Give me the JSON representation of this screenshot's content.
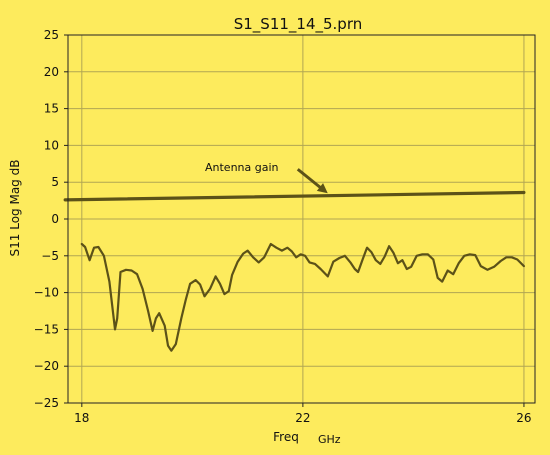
{
  "colors": {
    "background": "#fdeb5d",
    "line": "#5c5218",
    "grid": "#b1a653",
    "text": "#111111"
  },
  "chart_data": {
    "type": "line",
    "title": "S1_S11_14_5.prn",
    "xlabel": "Freq",
    "xunit": "GHz",
    "ylabel": "S11 Log Mag dB",
    "xlim": [
      17.75,
      26.2
    ],
    "ylim": [
      -25,
      25
    ],
    "xticks": [
      18,
      22,
      26
    ],
    "yticks": [
      25,
      20,
      15,
      10,
      5,
      0,
      -5,
      -10,
      -15,
      -20,
      -25
    ],
    "grid": true,
    "annotation": {
      "text": "Antenna gain",
      "points_to": [
        22.45,
        3.5
      ]
    },
    "series": [
      {
        "role": "reference",
        "x": [
          17.7,
          26.0
        ],
        "y": [
          2.6,
          3.6
        ]
      },
      {
        "role": "s11",
        "x": [
          18.0,
          18.06,
          18.14,
          18.22,
          18.3,
          18.4,
          18.5,
          18.6,
          18.64,
          18.7,
          18.8,
          18.9,
          19.0,
          19.1,
          19.2,
          19.28,
          19.34,
          19.4,
          19.5,
          19.56,
          19.62,
          19.7,
          19.8,
          19.88,
          19.96,
          20.06,
          20.14,
          20.22,
          20.32,
          20.42,
          20.5,
          20.58,
          20.66,
          20.72,
          20.82,
          20.92,
          21.0,
          21.1,
          21.2,
          21.3,
          21.42,
          21.52,
          21.62,
          21.72,
          21.8,
          21.88,
          21.96,
          22.04,
          22.12,
          22.22,
          22.32,
          22.45,
          22.55,
          22.66,
          22.76,
          22.86,
          22.94,
          23.0,
          23.08,
          23.16,
          23.24,
          23.32,
          23.4,
          23.48,
          23.56,
          23.64,
          23.72,
          23.8,
          23.88,
          23.96,
          24.06,
          24.16,
          24.26,
          24.36,
          24.44,
          24.52,
          24.62,
          24.72,
          24.82,
          24.92,
          25.02,
          25.12,
          25.22,
          25.34,
          25.46,
          25.58,
          25.68,
          25.78,
          25.88,
          26.0
        ],
        "y": [
          -3.4,
          -3.8,
          -5.6,
          -3.9,
          -3.8,
          -5.0,
          -8.5,
          -15.0,
          -13.5,
          -7.2,
          -6.9,
          -7.0,
          -7.5,
          -9.5,
          -12.5,
          -15.2,
          -13.5,
          -12.8,
          -14.5,
          -17.2,
          -17.9,
          -17.0,
          -13.5,
          -11.0,
          -8.8,
          -8.3,
          -8.9,
          -10.5,
          -9.5,
          -7.8,
          -8.8,
          -10.2,
          -9.8,
          -7.6,
          -5.8,
          -4.7,
          -4.3,
          -5.2,
          -5.9,
          -5.2,
          -3.4,
          -3.9,
          -4.3,
          -3.9,
          -4.4,
          -5.2,
          -4.8,
          -5.0,
          -5.9,
          -6.1,
          -6.8,
          -7.8,
          -5.8,
          -5.3,
          -5.0,
          -5.9,
          -6.8,
          -7.2,
          -5.5,
          -3.9,
          -4.5,
          -5.6,
          -6.1,
          -5.1,
          -3.7,
          -4.6,
          -6.0,
          -5.6,
          -6.8,
          -6.5,
          -5.0,
          -4.8,
          -4.8,
          -5.5,
          -8.0,
          -8.5,
          -7.0,
          -7.5,
          -6.0,
          -5.0,
          -4.8,
          -4.9,
          -6.4,
          -6.9,
          -6.5,
          -5.7,
          -5.2,
          -5.2,
          -5.5,
          -6.4
        ]
      }
    ]
  }
}
